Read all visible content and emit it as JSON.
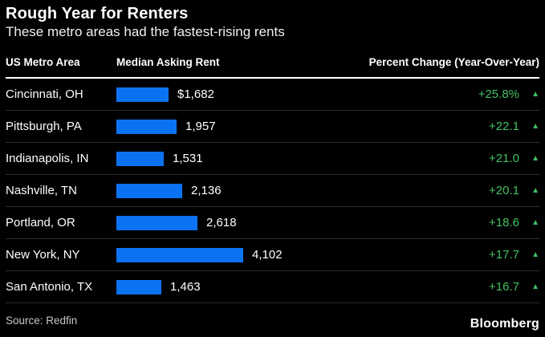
{
  "header": {
    "title": "Rough Year for Renters",
    "subtitle": "These metro areas had the fastest-rising rents"
  },
  "table": {
    "columns": [
      "US Metro Area",
      "Median Asking Rent",
      "Percent Change (Year-Over-Year)"
    ],
    "rows": [
      {
        "metro": "Cincinnati, OH",
        "rent": "$1,682",
        "change": "+25.8%"
      },
      {
        "metro": "Pittsburgh, PA",
        "rent": "1,957",
        "change": "+22.1"
      },
      {
        "metro": "Indianapolis, IN",
        "rent": "1,531",
        "change": "+21.0"
      },
      {
        "metro": "Nashville, TN",
        "rent": "2,136",
        "change": "+20.1"
      },
      {
        "metro": "Portland, OR",
        "rent": "2,618",
        "change": "+18.6"
      },
      {
        "metro": "New York, NY",
        "rent": "4,102",
        "change": "+17.7"
      },
      {
        "metro": "San Antonio, TX",
        "rent": "1,463",
        "change": "+16.7"
      }
    ]
  },
  "footer": {
    "source": "Source: Redfin",
    "brand": "Bloomberg"
  },
  "icons": {
    "up_arrow": "▲"
  },
  "colors": {
    "background": "#000000",
    "bar-blue": "#0b73f2",
    "positive-green": "#42c162",
    "divider": "#2d2d2d",
    "header-line": "#ffffff",
    "text-primary": "#ffffff",
    "text-secondary": "#f0f0f0",
    "text-muted": "#c9c9c9"
  },
  "chart_data": {
    "type": "bar",
    "orientation": "horizontal",
    "title": "Rough Year for Renters",
    "subtitle": "These metro areas had the fastest-rising rents",
    "categories": [
      "Cincinnati, OH",
      "Pittsburgh, PA",
      "Indianapolis, IN",
      "Nashville, TN",
      "Portland, OR",
      "New York, NY",
      "San Antonio, TX"
    ],
    "series": [
      {
        "name": "Median Asking Rent ($)",
        "values": [
          1682,
          1957,
          1531,
          2136,
          2618,
          4102,
          1463
        ]
      },
      {
        "name": "Percent Change (Year-Over-Year)",
        "values": [
          25.8,
          22.1,
          21.0,
          20.1,
          18.6,
          17.7,
          16.7
        ]
      }
    ],
    "xlim": [
      0,
      4102
    ],
    "grid": false,
    "legend": false,
    "source": "Redfin"
  }
}
